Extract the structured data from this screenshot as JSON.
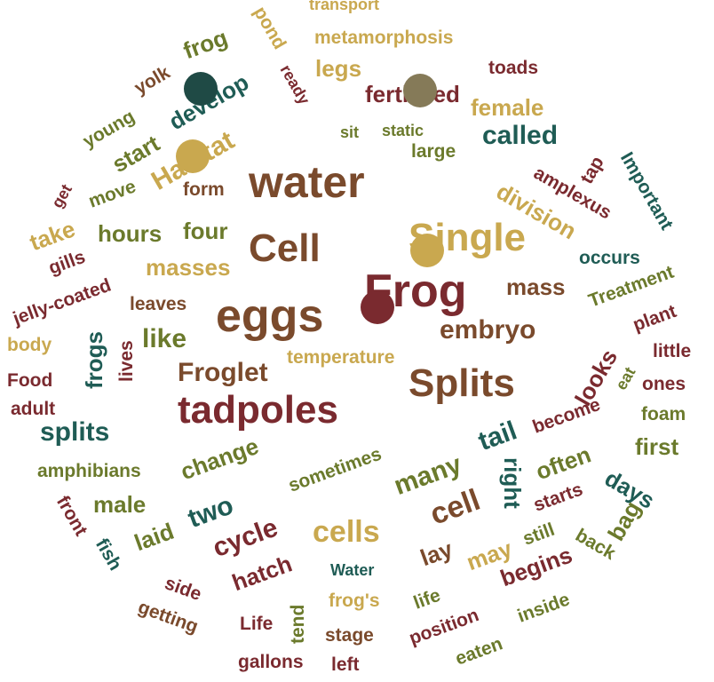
{
  "words": {
    "transport": "transport",
    "metamorphosis": "metamorphosis",
    "legs": "legs",
    "toads": "toads",
    "fertilized": "fertilized",
    "female": "female",
    "static": "static",
    "sit": "sit",
    "large": "large",
    "called": "called",
    "tap": "tap",
    "important": "Important",
    "amplexus": "amplexus",
    "division": "division",
    "single": "Single",
    "pond": "pond",
    "ready": "ready",
    "frog": "frog",
    "yolk": "yolk",
    "young": "young",
    "develop": "develop",
    "start": "start",
    "habitat": "Habitat",
    "get": "get",
    "move": "move",
    "form": "form",
    "water": "water",
    "take": "take",
    "hours": "hours",
    "four": "four",
    "cell_big": "Cell",
    "gills": "gills",
    "jelly_coated": "jelly-coated",
    "masses": "masses",
    "leaves": "leaves",
    "eggs": "eggs",
    "frog_big": "Frog",
    "mass": "mass",
    "occurs": "occurs",
    "treatment": "Treatment",
    "plant": "plant",
    "body": "body",
    "frogs": "frogs",
    "lives": "lives",
    "like": "like",
    "embryo": "embryo",
    "little": "little",
    "food": "Food",
    "froglet": "Froglet",
    "temperature": "temperature",
    "looks": "looks",
    "eat": "eat",
    "ones": "ones",
    "adult": "adult",
    "splits_big": "Splits",
    "foam": "foam",
    "tadpoles": "tadpoles",
    "become": "become",
    "splits": "splits",
    "tail": "tail",
    "first": "first",
    "amphibians": "amphibians",
    "change": "change",
    "sometimes": "sometimes",
    "often": "often",
    "right": "right",
    "many": "many",
    "days": "days",
    "male": "male",
    "starts": "starts",
    "two": "two",
    "front": "front",
    "cell": "cell",
    "bag": "bag",
    "laid": "laid",
    "cells": "cells",
    "fish": "fish",
    "cycle": "cycle",
    "still": "still",
    "back": "back",
    "lay": "lay",
    "may": "may",
    "side": "side",
    "hatch": "hatch",
    "water_small": "Water",
    "begins": "begins",
    "frogs_apos": "frog's",
    "life": "life",
    "getting": "getting",
    "tend": "tend",
    "inside": "inside",
    "life_cap": "Life",
    "position": "position",
    "stage": "stage",
    "eaten": "eaten",
    "gallons": "gallons",
    "left": "left"
  },
  "colors": {
    "brown": "#7a4a2c",
    "gold": "#c9a84f",
    "olive": "#6b7a2c",
    "teal": "#1f5c55",
    "maroon": "#7a2a2f",
    "dot_dark_teal": "#1f4a45",
    "dot_gray_olive": "#857a58",
    "dot_gold": "#c9a84f",
    "dot_maroon": "#7a2a2f"
  }
}
